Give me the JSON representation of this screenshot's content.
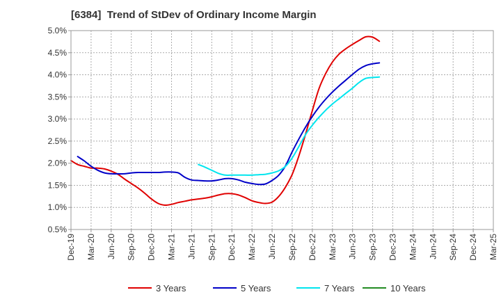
{
  "chart_data": {
    "type": "line",
    "title": "[6384]  Trend of StDev of Ordinary Income Margin",
    "xlabel": "",
    "ylabel": "",
    "x_tick_labels": [
      "Dec-19",
      "Mar-20",
      "Jun-20",
      "Sep-20",
      "Dec-20",
      "Mar-21",
      "Jun-21",
      "Sep-21",
      "Dec-21",
      "Mar-22",
      "Jun-22",
      "Sep-22",
      "Dec-22",
      "Mar-23",
      "Jun-23",
      "Sep-23",
      "Dec-23",
      "Mar-24",
      "Jun-24",
      "Sep-24",
      "Dec-24",
      "Mar-25"
    ],
    "y_tick_labels": [
      "0.5%",
      "1.0%",
      "1.5%",
      "2.0%",
      "2.5%",
      "3.0%",
      "3.5%",
      "4.0%",
      "4.5%",
      "5.0%"
    ],
    "ylim": [
      0.5,
      5.0
    ],
    "grid": true,
    "legend_position": "bottom",
    "series": [
      {
        "name": "3 Years",
        "color": "#e00000",
        "values": [
          2.06,
          1.97,
          1.93,
          1.89,
          1.89,
          1.87,
          1.82,
          1.75,
          1.64,
          1.54,
          1.44,
          1.32,
          1.19,
          1.09,
          1.05,
          1.07,
          1.11,
          1.14,
          1.17,
          1.19,
          1.21,
          1.24,
          1.28,
          1.31,
          1.31,
          1.28,
          1.22,
          1.15,
          1.11,
          1.09,
          1.12,
          1.25,
          1.46,
          1.75,
          2.17,
          2.66,
          3.19,
          3.69,
          4.03,
          4.29,
          4.47,
          4.59,
          4.69,
          4.78,
          4.86,
          4.85,
          4.76
        ]
      },
      {
        "name": "5 Years",
        "color": "#0000c8",
        "values": [
          null,
          2.15,
          2.05,
          1.93,
          1.84,
          1.78,
          1.76,
          1.76,
          1.76,
          1.78,
          1.79,
          1.79,
          1.79,
          1.79,
          1.8,
          1.8,
          1.78,
          1.68,
          1.62,
          1.61,
          1.6,
          1.6,
          1.62,
          1.65,
          1.65,
          1.62,
          1.57,
          1.54,
          1.52,
          1.53,
          1.61,
          1.73,
          1.94,
          2.26,
          2.55,
          2.82,
          3.06,
          3.27,
          3.45,
          3.61,
          3.75,
          3.88,
          4.01,
          4.13,
          4.21,
          4.25,
          4.27
        ]
      },
      {
        "name": "7 Years",
        "color": "#00e5ee",
        "values": [
          null,
          null,
          null,
          null,
          null,
          null,
          null,
          null,
          null,
          null,
          null,
          null,
          null,
          null,
          null,
          null,
          null,
          null,
          null,
          1.97,
          1.91,
          1.84,
          1.77,
          1.73,
          1.73,
          1.73,
          1.73,
          1.73,
          1.74,
          1.75,
          1.78,
          1.83,
          1.93,
          2.12,
          2.38,
          2.65,
          2.86,
          3.04,
          3.2,
          3.34,
          3.46,
          3.58,
          3.7,
          3.83,
          3.92,
          3.94,
          3.95
        ]
      },
      {
        "name": "10 Years",
        "color": "#228b22",
        "values": []
      }
    ]
  }
}
